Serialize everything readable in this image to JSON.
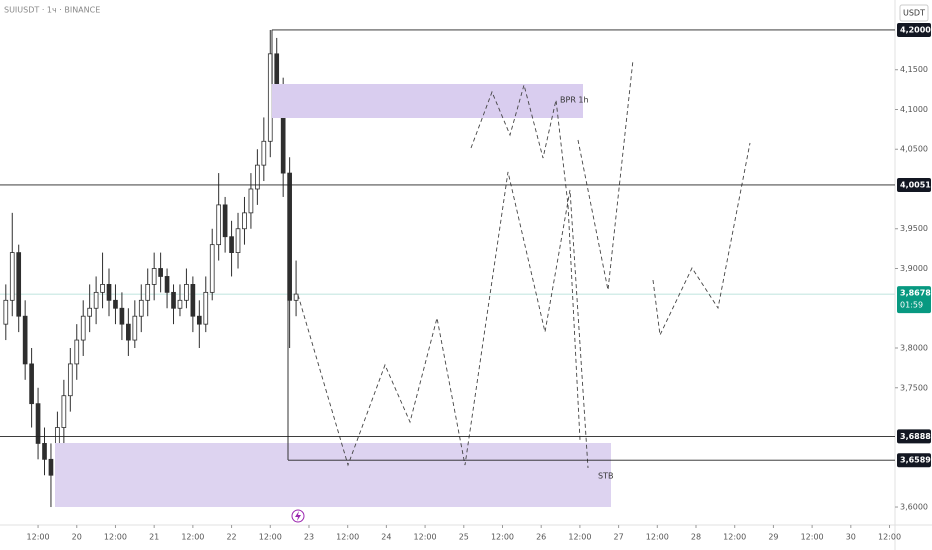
{
  "chart_data": {
    "type": "candlestick",
    "title": "SUIUSDT · 1ч · BINANCE",
    "currency": "USDT",
    "xlim": [
      0.2,
      277.7
    ],
    "ylim": [
      3.5774,
      4.2377
    ],
    "xticks": [
      {
        "value": 12,
        "label": "12:00"
      },
      {
        "value": 24,
        "label": "20"
      },
      {
        "value": 36,
        "label": "12:00"
      },
      {
        "value": 48,
        "label": "21"
      },
      {
        "value": 60,
        "label": "12:00"
      },
      {
        "value": 72,
        "label": "22"
      },
      {
        "value": 84,
        "label": "12:00"
      },
      {
        "value": 96,
        "label": "23"
      },
      {
        "value": 108,
        "label": "12:00"
      },
      {
        "value": 120,
        "label": "24"
      },
      {
        "value": 132,
        "label": "12:00"
      },
      {
        "value": 144,
        "label": "25"
      },
      {
        "value": 156,
        "label": "12:00"
      },
      {
        "value": 168,
        "label": "26"
      },
      {
        "value": 180,
        "label": "12:00"
      },
      {
        "value": 192,
        "label": "27"
      },
      {
        "value": 204,
        "label": "12:00"
      },
      {
        "value": 216,
        "label": "28"
      },
      {
        "value": 228,
        "label": "12:00"
      },
      {
        "value": 240,
        "label": "29"
      },
      {
        "value": 252,
        "label": "12:00"
      },
      {
        "value": 264,
        "label": "30"
      },
      {
        "value": 276,
        "label": "12:00"
      }
    ],
    "yticks": [
      {
        "value": 3.6,
        "label": "3,6000"
      },
      {
        "value": 3.75,
        "label": "3,7500"
      },
      {
        "value": 3.8,
        "label": "3,8000"
      },
      {
        "value": 3.9,
        "label": "3,9000"
      },
      {
        "value": 3.95,
        "label": "3,9500"
      },
      {
        "value": 4.05,
        "label": "4,0500"
      },
      {
        "value": 4.1,
        "label": "4,1000"
      },
      {
        "value": 4.15,
        "label": "4,1500"
      }
    ],
    "up_color": "#ffffff",
    "down_color": "#2e2e2e",
    "x": [
      2,
      4,
      6,
      8,
      10,
      12,
      14,
      16,
      18,
      20,
      22,
      24,
      26,
      28,
      30,
      32,
      34,
      36,
      38,
      40,
      42,
      44,
      46,
      48,
      50,
      52,
      54,
      56,
      58,
      60,
      62,
      64,
      66,
      68,
      70,
      72,
      74,
      76,
      78,
      80,
      82,
      84,
      86,
      88,
      90,
      92
    ],
    "open": [
      3.83,
      3.86,
      3.92,
      3.84,
      3.78,
      3.73,
      3.68,
      3.66,
      3.64,
      3.7,
      3.74,
      3.78,
      3.81,
      3.84,
      3.85,
      3.87,
      3.88,
      3.86,
      3.85,
      3.83,
      3.81,
      3.84,
      3.86,
      3.88,
      3.9,
      3.89,
      3.87,
      3.85,
      3.86,
      3.88,
      3.84,
      3.83,
      3.87,
      3.93,
      3.98,
      3.94,
      3.92,
      3.95,
      3.97,
      4.0,
      4.03,
      4.06,
      4.17,
      4.13,
      4.02,
      3.86
    ],
    "high": [
      3.88,
      3.97,
      3.93,
      3.86,
      3.8,
      3.75,
      3.7,
      3.68,
      3.72,
      3.76,
      3.8,
      3.83,
      3.86,
      3.88,
      3.89,
      3.92,
      3.9,
      3.88,
      3.87,
      3.85,
      3.86,
      3.88,
      3.9,
      3.92,
      3.92,
      3.9,
      3.88,
      3.88,
      3.9,
      3.89,
      3.86,
      3.89,
      3.95,
      4.02,
      3.99,
      3.96,
      3.97,
      3.99,
      4.02,
      4.05,
      4.09,
      4.2,
      4.19,
      4.14,
      4.04,
      3.91
    ],
    "low": [
      3.81,
      3.84,
      3.82,
      3.76,
      3.7,
      3.66,
      3.64,
      3.6,
      3.62,
      3.68,
      3.72,
      3.76,
      3.79,
      3.82,
      3.83,
      3.85,
      3.84,
      3.83,
      3.81,
      3.79,
      3.8,
      3.82,
      3.84,
      3.86,
      3.87,
      3.85,
      3.83,
      3.84,
      3.85,
      3.82,
      3.8,
      3.82,
      3.86,
      3.91,
      3.92,
      3.89,
      3.9,
      3.93,
      3.95,
      3.98,
      4.01,
      4.04,
      4.1,
      3.99,
      3.8,
      3.84
    ],
    "close": [
      3.86,
      3.92,
      3.84,
      3.78,
      3.73,
      3.68,
      3.66,
      3.64,
      3.7,
      3.74,
      3.78,
      3.81,
      3.84,
      3.85,
      3.87,
      3.88,
      3.86,
      3.85,
      3.83,
      3.81,
      3.84,
      3.86,
      3.88,
      3.9,
      3.89,
      3.87,
      3.85,
      3.86,
      3.88,
      3.84,
      3.83,
      3.87,
      3.93,
      3.98,
      3.94,
      3.92,
      3.95,
      3.97,
      4.0,
      4.03,
      4.06,
      4.17,
      4.13,
      4.02,
      3.86,
      3.8678
    ],
    "levels": [
      {
        "value": 4.2,
        "label": "4,2000",
        "from": 84.5
      },
      {
        "value": 4.0051,
        "label": "4,0051",
        "from": 0.2
      },
      {
        "value": 3.6888,
        "label": "3,6888",
        "from": 0.2
      },
      {
        "value": 3.6589,
        "label": "3,6589",
        "from": 89.5
      }
    ],
    "current": {
      "value": 3.8678,
      "label": "3,8678",
      "countdown": "01:59",
      "color": "#089981"
    },
    "annotations": {
      "zone_top": "BPR 1h",
      "zone_bottom": "STB"
    }
  }
}
